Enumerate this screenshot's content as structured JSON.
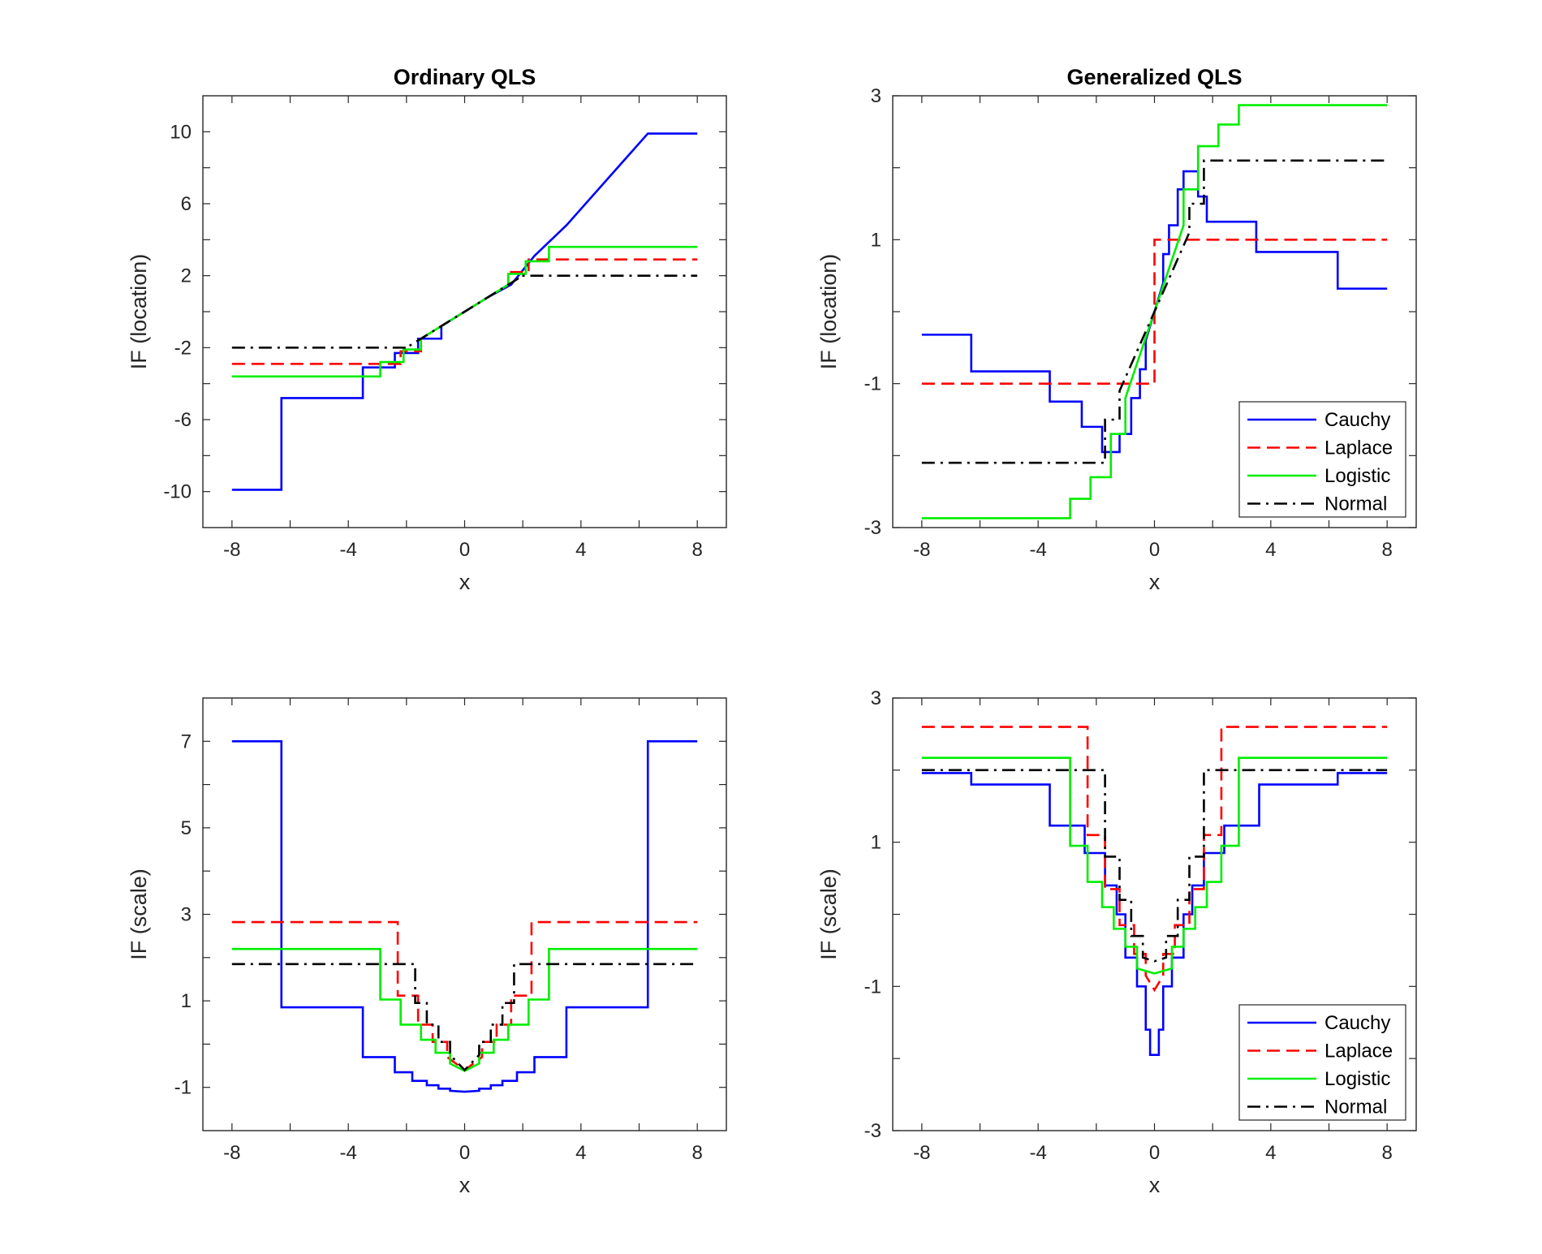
{
  "chart_data": [
    {
      "type": "line",
      "title": "Ordinary QLS",
      "xlabel": "x",
      "ylabel": "IF (location)",
      "xlim": [
        -9,
        9
      ],
      "ylim": [
        -12,
        12
      ],
      "xticks": [
        -8,
        -4,
        0,
        4,
        8
      ],
      "xtick_labels": [
        "-8",
        "-4",
        "0",
        "4",
        "8"
      ],
      "yticks": [
        -10,
        -6,
        -2,
        2,
        6,
        10
      ],
      "ytick_labels": [
        "-10",
        "-6",
        "-2",
        "2",
        "6",
        "10"
      ],
      "minor_yticks": [
        -8,
        -4,
        0,
        4,
        8
      ],
      "legend": null,
      "series": [
        {
          "name": "Cauchy",
          "color": "#0000ff",
          "dash": "solid",
          "x": [
            -8,
            -6.3,
            -6.3,
            -3.5,
            -3.5,
            -2.4,
            -2.4,
            -1.6,
            -1.6,
            -0.8,
            -0.8,
            0,
            0.8,
            0.8,
            1.6,
            1.6,
            2.4,
            2.4,
            3.5,
            3.5,
            6.3,
            6.3,
            8
          ],
          "y": [
            -9.9,
            -9.9,
            -4.8,
            -4.8,
            -3.1,
            -3.1,
            -2.3,
            -2.3,
            -1.5,
            -1.5,
            -0.8,
            0,
            0.8,
            0.8,
            1.5,
            1.5,
            3.1,
            3.1,
            4.8,
            4.8,
            9.9,
            9.9,
            9.9
          ]
        },
        {
          "name": "Laplace",
          "color": "#ff0000",
          "dash": "dashed",
          "x": [
            -8,
            -2.2,
            -2.2,
            -1.5,
            -1.5,
            0,
            1.5,
            1.5,
            2.2,
            2.2,
            8
          ],
          "y": [
            -2.9,
            -2.9,
            -2.2,
            -2.2,
            -1.5,
            0,
            1.5,
            2.2,
            2.2,
            2.9,
            2.9
          ]
        },
        {
          "name": "Logistic",
          "color": "#00ee00",
          "dash": "solid",
          "x": [
            -8,
            -2.9,
            -2.9,
            -2.1,
            -2.1,
            -1.5,
            -1.5,
            0,
            1.5,
            1.5,
            2.1,
            2.1,
            2.9,
            2.9,
            8
          ],
          "y": [
            -3.6,
            -3.6,
            -2.8,
            -2.8,
            -2.1,
            -2.1,
            -1.5,
            0,
            1.5,
            2.1,
            2.1,
            2.8,
            2.8,
            3.6,
            3.6
          ]
        },
        {
          "name": "Normal",
          "color": "#000000",
          "dash": "dashdot",
          "x": [
            -8,
            -1.9,
            -1.9,
            0,
            1.9,
            1.9,
            8
          ],
          "y": [
            -2.0,
            -2.0,
            -1.9,
            0,
            1.9,
            2.0,
            2.0
          ]
        }
      ]
    },
    {
      "type": "line",
      "title": "Generalized QLS",
      "xlabel": "x",
      "ylabel": "IF (location)",
      "xlim": [
        -9,
        9
      ],
      "ylim": [
        -3,
        3
      ],
      "xticks": [
        -8,
        -4,
        0,
        4,
        8
      ],
      "xtick_labels": [
        "-8",
        "-4",
        "0",
        "4",
        "8"
      ],
      "yticks": [
        -3,
        -1,
        1,
        3
      ],
      "ytick_labels": [
        "-3",
        "-1",
        "1",
        "3"
      ],
      "minor_yticks": [
        -2,
        0,
        2
      ],
      "legend": {
        "position": "bottom-right",
        "entries": [
          "Cauchy",
          "Laplace",
          "Logistic",
          "Normal"
        ]
      },
      "series": [
        {
          "name": "Cauchy",
          "color": "#0000ff",
          "dash": "solid",
          "x": [
            -8,
            -6.3,
            -6.3,
            -3.6,
            -3.6,
            -2.5,
            -2.5,
            -1.8,
            -1.8,
            -1.2,
            -1.2,
            -0.8,
            -0.8,
            -0.5,
            -0.5,
            -0.3,
            -0.3,
            0,
            0.3,
            0.3,
            0.5,
            0.5,
            0.8,
            0.8,
            1.0,
            1.0,
            1.5,
            1.5,
            1.8,
            1.8,
            2.4,
            2.4,
            3.5,
            3.5,
            6.3,
            6.3,
            8
          ],
          "y": [
            -0.32,
            -0.32,
            -0.83,
            -0.83,
            -1.25,
            -1.25,
            -1.6,
            -1.6,
            -1.95,
            -1.95,
            -1.7,
            -1.7,
            -1.2,
            -1.2,
            -0.8,
            -0.8,
            -0.4,
            0,
            0.4,
            0.8,
            0.8,
            1.2,
            1.2,
            1.7,
            1.7,
            1.95,
            1.95,
            1.6,
            1.6,
            1.25,
            1.25,
            1.25,
            1.25,
            0.83,
            0.83,
            0.32,
            0.32
          ]
        },
        {
          "name": "Laplace",
          "color": "#ff0000",
          "dash": "dashed",
          "x": [
            -8,
            0,
            0,
            8
          ],
          "y": [
            -1,
            -1,
            1,
            1
          ]
        },
        {
          "name": "Logistic",
          "color": "#00ee00",
          "dash": "solid",
          "x": [
            -8,
            -2.9,
            -2.9,
            -2.2,
            -2.2,
            -1.5,
            -1.5,
            -1.0,
            -1.0,
            0,
            1.0,
            1.0,
            1.5,
            1.5,
            2.2,
            2.2,
            2.9,
            2.9,
            8
          ],
          "y": [
            -2.87,
            -2.87,
            -2.6,
            -2.6,
            -2.3,
            -2.3,
            -1.7,
            -1.7,
            -1.2,
            0,
            1.2,
            1.7,
            1.7,
            2.3,
            2.3,
            2.6,
            2.6,
            2.87,
            2.87
          ]
        },
        {
          "name": "Normal",
          "color": "#000000",
          "dash": "dashdot",
          "x": [
            -8,
            -1.7,
            -1.7,
            -1.2,
            -1.2,
            0,
            1.2,
            1.2,
            1.7,
            1.7,
            8
          ],
          "y": [
            -2.1,
            -2.1,
            -1.5,
            -1.5,
            -1.1,
            0,
            1.1,
            1.5,
            1.5,
            2.1,
            2.1
          ]
        }
      ]
    },
    {
      "type": "line",
      "title": "",
      "xlabel": "x",
      "ylabel": "IF (scale)",
      "xlim": [
        -9,
        9
      ],
      "ylim": [
        -2,
        8
      ],
      "xticks": [
        -8,
        -4,
        0,
        4,
        8
      ],
      "xtick_labels": [
        "-8",
        "-4",
        "0",
        "4",
        "8"
      ],
      "yticks": [
        -1,
        1,
        3,
        5,
        7
      ],
      "ytick_labels": [
        "-1",
        "1",
        "3",
        "5",
        "7"
      ],
      "minor_yticks": [
        0,
        2,
        4,
        6
      ],
      "legend": null,
      "series": [
        {
          "name": "Cauchy",
          "color": "#0000ff",
          "dash": "solid",
          "x": [
            -8,
            -6.3,
            -6.3,
            -3.5,
            -3.5,
            -2.4,
            -2.4,
            -1.8,
            -1.8,
            -1.3,
            -1.3,
            -0.9,
            -0.9,
            -0.5,
            -0.5,
            0,
            0.5,
            0.5,
            0.9,
            0.9,
            1.3,
            1.3,
            1.8,
            1.8,
            2.4,
            2.4,
            3.5,
            3.5,
            6.3,
            6.3,
            8
          ],
          "y": [
            7.0,
            7.0,
            0.85,
            0.85,
            -0.3,
            -0.3,
            -0.65,
            -0.65,
            -0.85,
            -0.85,
            -0.95,
            -0.95,
            -1.03,
            -1.03,
            -1.08,
            -1.1,
            -1.08,
            -1.03,
            -1.03,
            -0.95,
            -0.95,
            -0.85,
            -0.85,
            -0.65,
            -0.65,
            -0.3,
            -0.3,
            0.85,
            0.85,
            7.0,
            7.0
          ]
        },
        {
          "name": "Laplace",
          "color": "#ff0000",
          "dash": "dashed",
          "x": [
            -8,
            -2.3,
            -2.3,
            -1.6,
            -1.6,
            -1.1,
            -1.1,
            -0.6,
            -0.6,
            0,
            0.6,
            0.6,
            1.1,
            1.1,
            1.6,
            1.6,
            2.3,
            2.3,
            8
          ],
          "y": [
            2.82,
            2.82,
            1.12,
            1.12,
            0.45,
            0.45,
            0.05,
            0.05,
            -0.3,
            -0.6,
            -0.3,
            0.05,
            0.05,
            0.45,
            0.45,
            1.12,
            1.12,
            2.82,
            2.82
          ]
        },
        {
          "name": "Logistic",
          "color": "#00ee00",
          "dash": "solid",
          "x": [
            -8,
            -2.9,
            -2.9,
            -2.2,
            -2.2,
            -1.5,
            -1.5,
            -1.0,
            -1.0,
            -0.5,
            -0.5,
            0,
            0.5,
            0.5,
            1.0,
            1.0,
            1.5,
            1.5,
            2.2,
            2.2,
            2.9,
            2.9,
            8
          ],
          "y": [
            2.2,
            2.2,
            1.03,
            1.03,
            0.45,
            0.45,
            0.1,
            0.1,
            -0.2,
            -0.2,
            -0.45,
            -0.62,
            -0.45,
            -0.2,
            -0.2,
            0.1,
            0.1,
            0.45,
            0.45,
            1.03,
            1.03,
            2.2,
            2.2
          ]
        },
        {
          "name": "Normal",
          "color": "#000000",
          "dash": "dashdot",
          "x": [
            -8,
            -1.7,
            -1.7,
            -1.3,
            -1.3,
            -0.9,
            -0.9,
            -0.5,
            -0.5,
            0,
            0.5,
            0.5,
            0.9,
            0.9,
            1.3,
            1.3,
            1.7,
            1.7,
            8
          ],
          "y": [
            1.85,
            1.85,
            0.95,
            0.95,
            0.45,
            0.45,
            0.05,
            0.05,
            -0.25,
            -0.6,
            -0.25,
            0.05,
            0.05,
            0.45,
            0.45,
            0.95,
            0.95,
            1.85,
            1.85
          ]
        }
      ]
    },
    {
      "type": "line",
      "title": "",
      "xlabel": "x",
      "ylabel": "IF (scale)",
      "xlim": [
        -9,
        9
      ],
      "ylim": [
        -3,
        3
      ],
      "xticks": [
        -8,
        -4,
        0,
        4,
        8
      ],
      "xtick_labels": [
        "-8",
        "-4",
        "0",
        "4",
        "8"
      ],
      "yticks": [
        -3,
        -1,
        1,
        3
      ],
      "ytick_labels": [
        "-3",
        "-1",
        "1",
        "3"
      ],
      "minor_yticks": [
        -2,
        0,
        2
      ],
      "legend": {
        "position": "bottom-right",
        "entries": [
          "Cauchy",
          "Laplace",
          "Logistic",
          "Normal"
        ]
      },
      "series": [
        {
          "name": "Cauchy",
          "color": "#0000ff",
          "dash": "solid",
          "x": [
            -8,
            -6.3,
            -6.3,
            -3.6,
            -3.6,
            -2.4,
            -2.4,
            -1.7,
            -1.7,
            -1.3,
            -1.3,
            -1.0,
            -1.0,
            -0.6,
            -0.6,
            -0.3,
            -0.3,
            -0.15,
            -0.15,
            0,
            0.15,
            0.15,
            0.3,
            0.3,
            0.6,
            0.6,
            1.0,
            1.0,
            1.3,
            1.3,
            1.7,
            1.7,
            2.4,
            2.4,
            3.6,
            3.6,
            6.3,
            6.3,
            8
          ],
          "y": [
            1.96,
            1.96,
            1.8,
            1.8,
            1.23,
            1.23,
            0.85,
            0.85,
            0.4,
            0.4,
            0.0,
            0.0,
            -0.6,
            -0.6,
            -1.0,
            -1.0,
            -1.6,
            -1.6,
            -1.95,
            -1.95,
            -1.95,
            -1.6,
            -1.6,
            -1.0,
            -1.0,
            -0.6,
            -0.6,
            0.0,
            0.0,
            0.4,
            0.4,
            0.85,
            0.85,
            1.23,
            1.23,
            1.8,
            1.8,
            1.96,
            1.96
          ]
        },
        {
          "name": "Laplace",
          "color": "#ff0000",
          "dash": "dashed",
          "x": [
            -8,
            -2.3,
            -2.3,
            -1.7,
            -1.7,
            -1.2,
            -1.2,
            -0.7,
            -0.7,
            -0.3,
            -0.3,
            0,
            0.3,
            0.3,
            0.7,
            0.7,
            1.2,
            1.2,
            1.7,
            1.7,
            2.3,
            2.3,
            8
          ],
          "y": [
            2.6,
            2.6,
            1.1,
            1.1,
            0.35,
            0.35,
            -0.15,
            -0.15,
            -0.55,
            -0.55,
            -0.85,
            -1.05,
            -0.85,
            -0.55,
            -0.55,
            -0.15,
            -0.15,
            0.35,
            0.35,
            1.1,
            1.1,
            2.6,
            2.6
          ]
        },
        {
          "name": "Logistic",
          "color": "#00ee00",
          "dash": "solid",
          "x": [
            -8,
            -2.9,
            -2.9,
            -2.3,
            -2.3,
            -1.8,
            -1.8,
            -1.4,
            -1.4,
            -1.0,
            -1.0,
            -0.6,
            -0.6,
            0,
            0.6,
            0.6,
            1.0,
            1.0,
            1.4,
            1.4,
            1.8,
            1.8,
            2.3,
            2.3,
            2.9,
            2.9,
            8
          ],
          "y": [
            2.17,
            2.17,
            0.95,
            0.95,
            0.45,
            0.45,
            0.1,
            0.1,
            -0.2,
            -0.2,
            -0.45,
            -0.45,
            -0.75,
            -0.82,
            -0.75,
            -0.45,
            -0.45,
            -0.2,
            -0.2,
            0.1,
            0.1,
            0.45,
            0.45,
            0.95,
            0.95,
            2.17,
            2.17
          ]
        },
        {
          "name": "Normal",
          "color": "#000000",
          "dash": "dashdot",
          "x": [
            -8,
            -1.7,
            -1.7,
            -1.2,
            -1.2,
            -0.8,
            -0.8,
            -0.4,
            -0.4,
            0,
            0.4,
            0.4,
            0.8,
            0.8,
            1.2,
            1.2,
            1.7,
            1.7,
            8
          ],
          "y": [
            2.0,
            2.0,
            0.8,
            0.8,
            0.2,
            0.2,
            -0.3,
            -0.3,
            -0.6,
            -0.65,
            -0.6,
            -0.3,
            -0.3,
            0.2,
            0.2,
            0.8,
            0.8,
            2.0,
            2.0
          ]
        }
      ]
    }
  ]
}
